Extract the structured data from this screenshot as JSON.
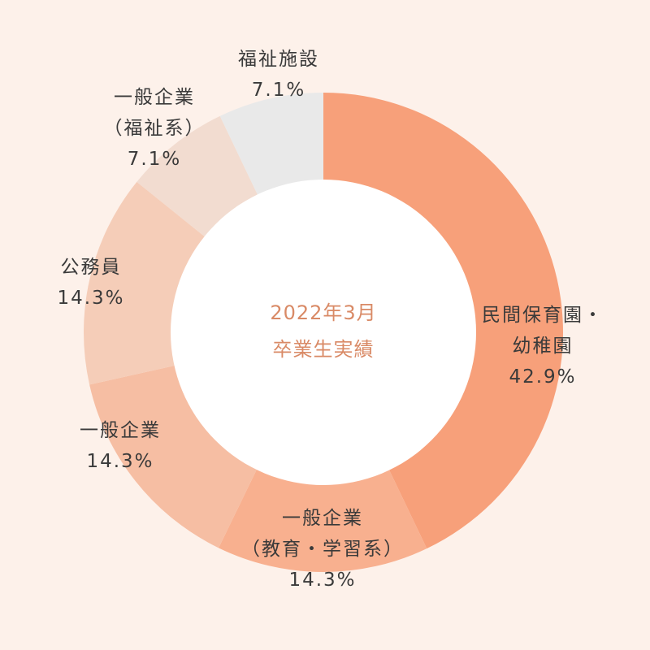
{
  "chart_data": {
    "type": "pie",
    "center_label": [
      "2022年3月",
      "卒業生実績"
    ],
    "slices": [
      {
        "label_lines": [
          "民間保育園・",
          "幼稚園"
        ],
        "value": 42.9,
        "value_label": "42.9%",
        "color": "#f7a07a"
      },
      {
        "label_lines": [
          "一般企業",
          "（教育・学習系）"
        ],
        "value": 14.3,
        "value_label": "14.3%",
        "color": "#f8b08f"
      },
      {
        "label_lines": [
          "一般企業"
        ],
        "value": 14.3,
        "value_label": "14.3%",
        "color": "#f6bea3"
      },
      {
        "label_lines": [
          "公務員"
        ],
        "value": 14.3,
        "value_label": "14.3%",
        "color": "#f5cdb8"
      },
      {
        "label_lines": [
          "一般企業",
          "（福祉系）"
        ],
        "value": 7.1,
        "value_label": "7.1%",
        "color": "#f2dcd0"
      },
      {
        "label_lines": [
          "福祉施設"
        ],
        "value": 7.1,
        "value_label": "7.1%",
        "color": "#e9e9e9"
      }
    ]
  }
}
